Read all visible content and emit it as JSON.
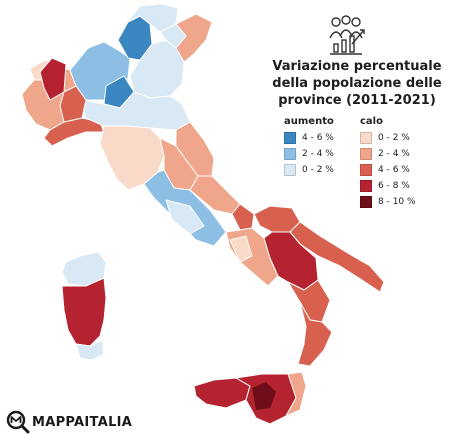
{
  "title_lines": [
    "Variazione percentuale",
    "della popolazione delle",
    "province (2011-2021)"
  ],
  "legend_increase": {
    "heading": "aumento",
    "items": [
      {
        "label": "4 - 6 %",
        "color": "#3a86c0"
      },
      {
        "label": "2 - 4 %",
        "color": "#8cbfe3"
      },
      {
        "label": "0 - 2 %",
        "color": "#d8e8f4"
      }
    ]
  },
  "legend_decrease": {
    "heading": "calo",
    "items": [
      {
        "label": "0 - 2 %",
        "color": "#f9dac8"
      },
      {
        "label": "2 - 4 %",
        "color": "#efa68a"
      },
      {
        "label": "4 - 6 %",
        "color": "#d8604f"
      },
      {
        "label": "6 - 8 %",
        "color": "#b4232f"
      },
      {
        "label": "8 - 10 %",
        "color": "#6e0e18"
      }
    ]
  },
  "brand": {
    "name": "MAPPAITALIA",
    "logo_icon": "magnifier-m-icon"
  },
  "header_icon": "population-growth-icon",
  "map_regions": [
    {
      "name": "alto-adige",
      "class": "0-2 % aumento",
      "color": "#d8e8f4"
    },
    {
      "name": "trentino",
      "class": "4-6 % aumento",
      "color": "#3a86c0"
    },
    {
      "name": "lombardia",
      "class": "2-4 % aumento",
      "color": "#8cbfe3"
    },
    {
      "name": "piemonte",
      "class": "2-4 % calo",
      "color": "#efa68a"
    },
    {
      "name": "valle-aosta",
      "class": "0-2 % calo",
      "color": "#f9dac8"
    },
    {
      "name": "veneto",
      "class": "0-2 % aumento",
      "color": "#d8e8f4"
    },
    {
      "name": "friuli",
      "class": "2-4 % calo",
      "color": "#efa68a"
    },
    {
      "name": "liguria",
      "class": "4-6 % calo",
      "color": "#d8604f"
    },
    {
      "name": "emilia-romagna",
      "class": "0-2 % aumento",
      "color": "#d8e8f4"
    },
    {
      "name": "toscana",
      "class": "0-2 % calo",
      "color": "#f9dac8"
    },
    {
      "name": "marche",
      "class": "2-4 % calo",
      "color": "#efa68a"
    },
    {
      "name": "umbria",
      "class": "2-4 % calo",
      "color": "#efa68a"
    },
    {
      "name": "lazio",
      "class": "2-4 % aumento",
      "color": "#8cbfe3"
    },
    {
      "name": "abruzzo",
      "class": "2-4 % calo",
      "color": "#efa68a"
    },
    {
      "name": "molise",
      "class": "4-6 % calo",
      "color": "#d8604f"
    },
    {
      "name": "campania",
      "class": "2-4 % calo",
      "color": "#efa68a"
    },
    {
      "name": "puglia",
      "class": "4-6 % calo",
      "color": "#d8604f"
    },
    {
      "name": "basilicata",
      "class": "6-8 % calo",
      "color": "#b4232f"
    },
    {
      "name": "calabria",
      "class": "4-6 % calo",
      "color": "#d8604f"
    },
    {
      "name": "sicilia",
      "class": "6-8 % calo",
      "color": "#b4232f"
    },
    {
      "name": "sardegna",
      "class": "6-8 % calo",
      "color": "#b4232f"
    }
  ]
}
